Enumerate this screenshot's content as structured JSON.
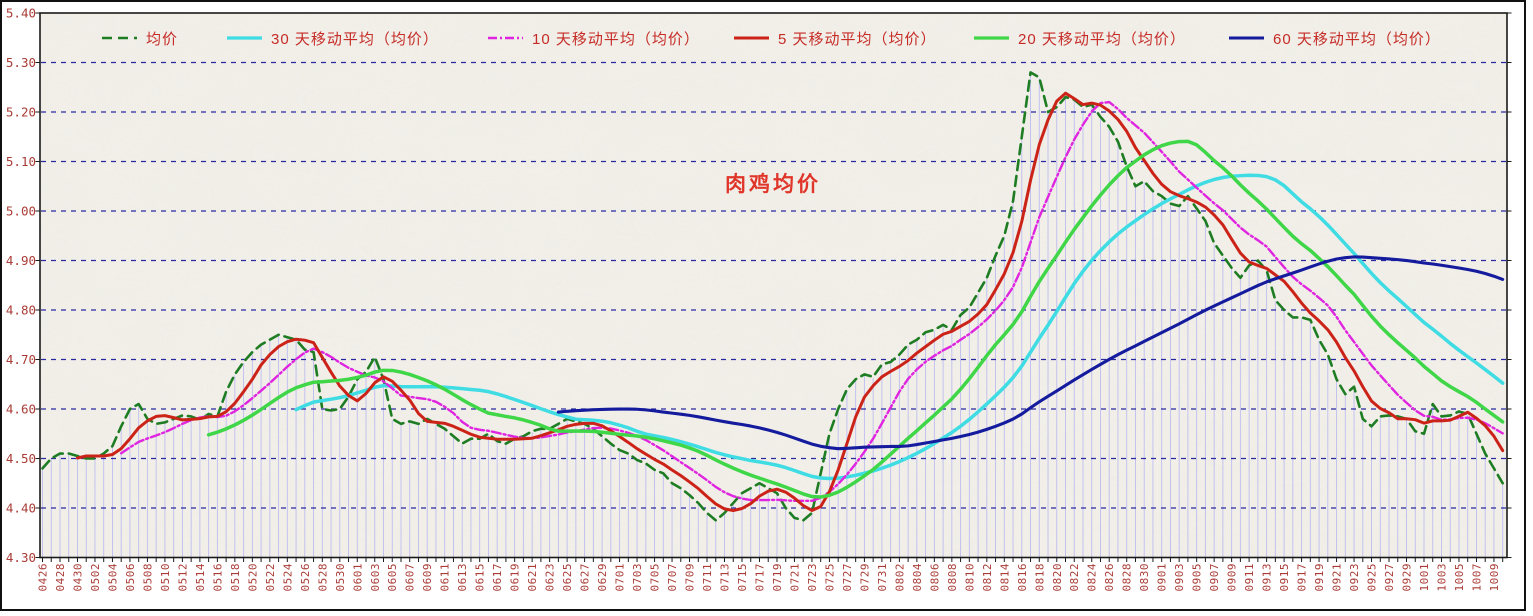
{
  "title": "肉鸡均价",
  "colors": {
    "plot_bg": "#f2efe9",
    "texture": "#d8d2c6",
    "grid": "#2a2aa0",
    "drop_line": "#bdbdf0",
    "axis_text": "#a93c36",
    "plot_border": "#1a1a1a",
    "outer_frame": "#111111",
    "legend_text": "#c62b26",
    "title_color": "#e0362a"
  },
  "legend": {
    "item_lefts": [
      101,
      226,
      487,
      733,
      973,
      1228
    ]
  },
  "chart_data": {
    "type": "line",
    "title": "肉鸡均价",
    "ylim": [
      4.3,
      5.4
    ],
    "y_step": 0.1,
    "y_tick_labels": [
      "4.30",
      "4.40",
      "4.50",
      "4.60",
      "4.70",
      "4.80",
      "4.90",
      "5.00",
      "5.10",
      "5.20",
      "5.30",
      "5.40"
    ],
    "x_label_every": 2,
    "grid": "horizontal-dashed",
    "drop_lines": true,
    "legend_position": "top-inside",
    "dates": [
      "0426",
      "0427",
      "0428",
      "0429",
      "0430",
      "0501",
      "0502",
      "0503",
      "0504",
      "0505",
      "0506",
      "0507",
      "0508",
      "0509",
      "0510",
      "0511",
      "0512",
      "0513",
      "0514",
      "0515",
      "0516",
      "0517",
      "0518",
      "0519",
      "0520",
      "0521",
      "0522",
      "0523",
      "0524",
      "0525",
      "0526",
      "0527",
      "0528",
      "0529",
      "0530",
      "0531",
      "0601",
      "0602",
      "0603",
      "0604",
      "0605",
      "0606",
      "0607",
      "0608",
      "0609",
      "0610",
      "0611",
      "0612",
      "0613",
      "0614",
      "0615",
      "0616",
      "0617",
      "0618",
      "0619",
      "0620",
      "0621",
      "0622",
      "0623",
      "0624",
      "0625",
      "0626",
      "0627",
      "0628",
      "0629",
      "0630",
      "0701",
      "0702",
      "0703",
      "0704",
      "0705",
      "0706",
      "0707",
      "0708",
      "0709",
      "0710",
      "0711",
      "0712",
      "0713",
      "0714",
      "0715",
      "0716",
      "0717",
      "0718",
      "0719",
      "0720",
      "0721",
      "0722",
      "0723",
      "0724",
      "0725",
      "0726",
      "0727",
      "0728",
      "0729",
      "0730",
      "0731",
      "0801",
      "0802",
      "0803",
      "0804",
      "0805",
      "0806",
      "0807",
      "0808",
      "0809",
      "0810",
      "0811",
      "0812",
      "0813",
      "0814",
      "0815",
      "0816",
      "0817",
      "0818",
      "0819",
      "0820",
      "0821",
      "0822",
      "0823",
      "0824",
      "0825",
      "0826",
      "0827",
      "0828",
      "0829",
      "0830",
      "0831",
      "0901",
      "0902",
      "0903",
      "0904",
      "0905",
      "0906",
      "0907",
      "0908",
      "0909",
      "0910",
      "0911",
      "0912",
      "0913",
      "0914",
      "0915",
      "0916",
      "0917",
      "0918",
      "0919",
      "0920",
      "0921",
      "0922",
      "0923",
      "0924",
      "0925",
      "0926",
      "0927",
      "0928",
      "0929",
      "0930",
      "1001",
      "1002",
      "1003",
      "1004",
      "1005",
      "1006",
      "1007",
      "1008",
      "1009",
      "1010"
    ],
    "series": [
      {
        "name": "均价",
        "legend_label": "均价",
        "type": "daily",
        "color": "#1e7d23",
        "dash": "10 6",
        "width": 2.6,
        "values": [
          4.48,
          4.5,
          4.51,
          4.51,
          4.505,
          4.5,
          4.5,
          4.51,
          4.525,
          4.565,
          4.6,
          4.61,
          4.58,
          4.57,
          4.573,
          4.58,
          4.587,
          4.585,
          4.578,
          4.59,
          4.585,
          4.635,
          4.67,
          4.695,
          4.715,
          4.73,
          4.74,
          4.75,
          4.745,
          4.74,
          4.72,
          4.715,
          4.6,
          4.597,
          4.6,
          4.625,
          4.66,
          4.675,
          4.705,
          4.66,
          4.58,
          4.57,
          4.575,
          4.57,
          4.58,
          4.57,
          4.56,
          4.545,
          4.53,
          4.54,
          4.54,
          4.55,
          4.535,
          4.53,
          4.54,
          4.545,
          4.555,
          4.56,
          4.56,
          4.57,
          4.58,
          4.575,
          4.57,
          4.56,
          4.545,
          4.53,
          4.517,
          4.51,
          4.497,
          4.49,
          4.477,
          4.47,
          4.45,
          4.44,
          4.426,
          4.41,
          4.39,
          4.375,
          4.39,
          4.41,
          4.43,
          4.44,
          4.45,
          4.44,
          4.43,
          4.4,
          4.38,
          4.375,
          4.39,
          4.47,
          4.55,
          4.6,
          4.64,
          4.66,
          4.67,
          4.665,
          4.69,
          4.695,
          4.71,
          4.73,
          4.74,
          4.755,
          4.76,
          4.77,
          4.76,
          4.79,
          4.805,
          4.835,
          4.865,
          4.91,
          4.95,
          5.02,
          5.15,
          5.28,
          5.27,
          5.2,
          5.21,
          5.23,
          5.225,
          5.21,
          5.215,
          5.19,
          5.17,
          5.14,
          5.09,
          5.05,
          5.06,
          5.04,
          5.03,
          5.015,
          5.01,
          5.03,
          5.005,
          4.98,
          4.935,
          4.91,
          4.885,
          4.865,
          4.89,
          4.9,
          4.88,
          4.82,
          4.8,
          4.785,
          4.785,
          4.78,
          4.74,
          4.71,
          4.66,
          4.63,
          4.645,
          4.58,
          4.565,
          4.585,
          4.587,
          4.585,
          4.58,
          4.555,
          4.55,
          4.61,
          4.585,
          4.587,
          4.595,
          4.59,
          4.55,
          4.51,
          4.48,
          4.45
        ]
      },
      {
        "name": "30 天移动平均（均价）",
        "legend_label": "30 天移动平均（均价）",
        "type": "moving_average",
        "source": "均价",
        "window": 30,
        "color": "#3fdce4",
        "dash": null,
        "width": 3.5
      },
      {
        "name": "10 天移动平均（均价）",
        "legend_label": "10 天移动平均（均价）",
        "type": "moving_average",
        "source": "均价",
        "window": 10,
        "color": "#df25df",
        "dash": "9 3 2 3",
        "width": 2.4
      },
      {
        "name": "5 天移动平均（均价）",
        "legend_label": "5 天移动平均（均价）",
        "type": "moving_average",
        "source": "均价",
        "window": 5,
        "color": "#cc2318",
        "dash": null,
        "width": 3
      },
      {
        "name": "20 天移动平均（均价）",
        "legend_label": "20 天移动平均（均价）",
        "type": "moving_average",
        "source": "均价",
        "window": 20,
        "color": "#3fd648",
        "dash": null,
        "width": 3.5
      },
      {
        "name": "60 天移动平均（均价）",
        "legend_label": "60 天移动平均（均价）",
        "type": "moving_average",
        "source": "均价",
        "window": 60,
        "color": "#141b9d",
        "dash": null,
        "width": 3.1
      }
    ]
  }
}
